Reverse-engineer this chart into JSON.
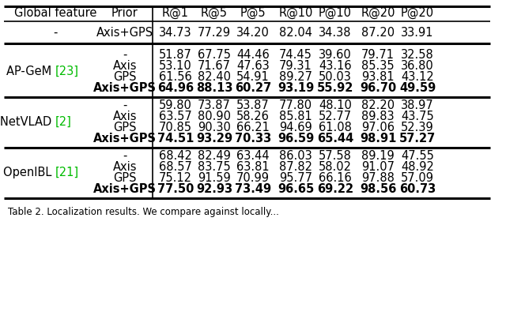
{
  "headers": [
    "Global feature",
    "Prior",
    "R@1",
    "R@5",
    "P@5",
    "R@10",
    "P@10",
    "R@20",
    "P@20"
  ],
  "baseline_row": [
    "-",
    "Axis+GPS",
    "34.73",
    "77.29",
    "34.20",
    "82.04",
    "34.38",
    "87.20",
    "33.91"
  ],
  "groups": [
    {
      "name_main": "AP-GeM ",
      "name_ref": "[23]",
      "rows": [
        [
          "-",
          "51.87",
          "67.75",
          "44.46",
          "74.45",
          "39.60",
          "79.71",
          "32.58"
        ],
        [
          "Axis",
          "53.10",
          "71.67",
          "47.63",
          "79.31",
          "43.16",
          "85.35",
          "36.80"
        ],
        [
          "GPS",
          "61.56",
          "82.40",
          "54.91",
          "89.27",
          "50.03",
          "93.81",
          "43.12"
        ],
        [
          "Axis+GPS",
          "64.96",
          "88.13",
          "60.27",
          "93.19",
          "55.92",
          "96.70",
          "49.59"
        ]
      ],
      "bold_row": 3
    },
    {
      "name_main": "NetVLAD ",
      "name_ref": "[2]",
      "rows": [
        [
          "-",
          "59.80",
          "73.87",
          "53.87",
          "77.80",
          "48.10",
          "82.20",
          "38.97"
        ],
        [
          "Axis",
          "63.57",
          "80.90",
          "58.26",
          "85.81",
          "52.77",
          "89.83",
          "43.75"
        ],
        [
          "GPS",
          "70.85",
          "90.30",
          "66.21",
          "94.69",
          "61.08",
          "97.06",
          "52.39"
        ],
        [
          "Axis+GPS",
          "74.51",
          "93.29",
          "70.33",
          "96.59",
          "65.44",
          "98.91",
          "57.27"
        ]
      ],
      "bold_row": 3
    },
    {
      "name_main": "OpenIBL ",
      "name_ref": "[21]",
      "rows": [
        [
          "-",
          "68.42",
          "82.49",
          "63.44",
          "86.03",
          "57.58",
          "89.19",
          "47.55"
        ],
        [
          "Axis",
          "68.57",
          "83.75",
          "63.81",
          "87.82",
          "58.02",
          "91.07",
          "48.92"
        ],
        [
          "GPS",
          "75.12",
          "91.59",
          "70.99",
          "95.77",
          "66.16",
          "97.88",
          "57.09"
        ],
        [
          "Axis+GPS",
          "77.50",
          "92.93",
          "73.49",
          "96.65",
          "69.22",
          "98.56",
          "60.73"
        ]
      ],
      "bold_row": 3
    }
  ],
  "caption": "Table 2. Localization results. We compare against locally...",
  "green_color": "#00bb00",
  "bg_color": "#ffffff"
}
